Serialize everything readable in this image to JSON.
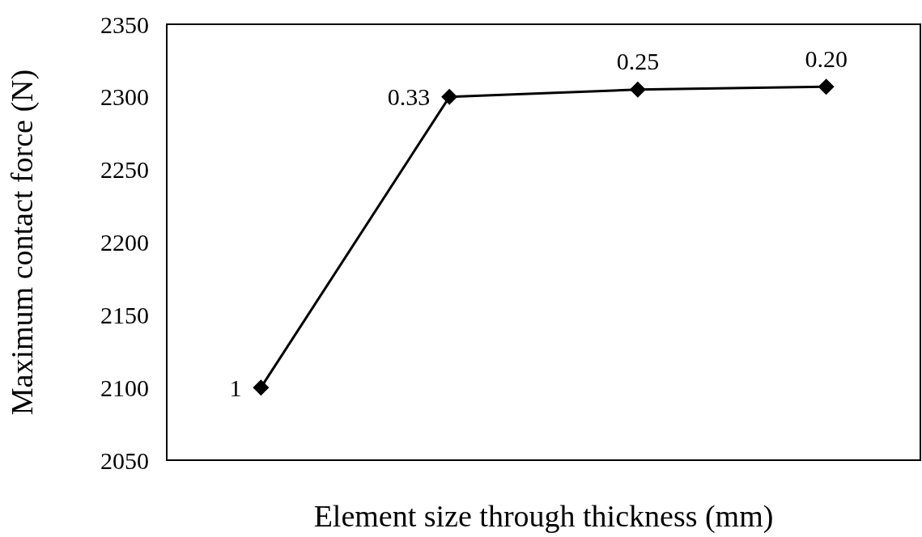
{
  "chart_data": {
    "type": "line",
    "xlabel": "Element size through thickness (mm)",
    "ylabel": "Maximum contact force (N)",
    "categories": [
      null,
      null,
      null,
      null
    ],
    "series": [
      {
        "color": "#000000",
        "values": [
          2100,
          2300,
          2305,
          2307
        ]
      }
    ],
    "ylim": [
      2050,
      2350
    ],
    "yticks": [
      2050,
      2100,
      2150,
      2200,
      2250,
      2300,
      2350
    ],
    "marker": "diamond",
    "line_style": "solid",
    "grid": false,
    "annotations": [
      "1",
      "0.33",
      "0.25",
      "0.20"
    ]
  }
}
